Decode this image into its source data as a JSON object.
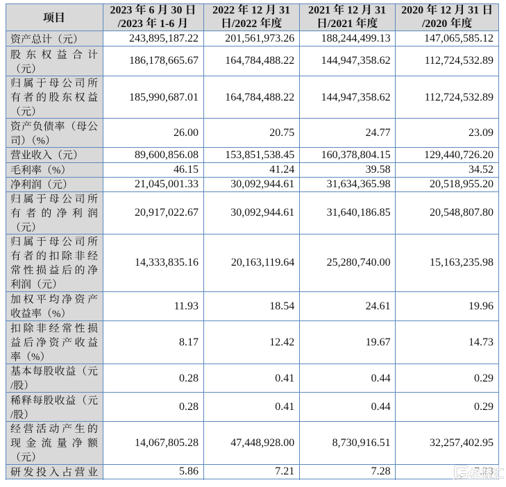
{
  "table": {
    "item_header": "项目",
    "period_headers": [
      {
        "lines": [
          "2023 年 6 月 30 日",
          "/2023 年 1-6 月"
        ],
        "text": "2023 年 6 月 30 日/2023 年 1-6 月"
      },
      {
        "lines": [
          "2022 年 12 月 31",
          "日/2022 年度"
        ],
        "text": "2022 年 12 月 31 日/2022 年度"
      },
      {
        "lines": [
          "2021 年 12 月 31",
          "日/2021 年度"
        ],
        "text": "2021 年 12 月 31 日/2021 年度"
      },
      {
        "lines": [
          "2020 年 12 月 31 日",
          "/2020 年度"
        ],
        "text": "2020 年 12 月 31 日/2020 年度"
      }
    ],
    "rows": [
      {
        "label": "资产总计（元）",
        "label_lines": [
          "资产总计（元）"
        ],
        "values": [
          "243,895,187.22",
          "201,561,973.26",
          "188,244,499.13",
          "147,065,585.12"
        ]
      },
      {
        "label": "股东权益合计（元）",
        "label_lines": [
          "股东权益合计",
          "（元）"
        ],
        "values": [
          "186,178,665.67",
          "164,784,488.22",
          "144,947,358.62",
          "112,724,532.89"
        ]
      },
      {
        "label": "归属于母公司所有者的股东权益（元）",
        "label_lines": [
          "归属于母公司所",
          "有者的股东权益",
          "（元）"
        ],
        "values": [
          "185,990,687.01",
          "164,784,488.22",
          "144,947,358.62",
          "112,724,532.89"
        ]
      },
      {
        "label": "资产负债率（母公司）（%）",
        "label_lines": [
          "资产负债率（母公",
          "司）（%）"
        ],
        "values": [
          "26.00",
          "20.75",
          "24.77",
          "23.09"
        ]
      },
      {
        "label": "营业收入（元）",
        "label_lines": [
          "营业收入（元）"
        ],
        "values": [
          "89,600,856.08",
          "153,851,538.45",
          "160,378,804.15",
          "129,440,726.20"
        ]
      },
      {
        "label": "毛利率（%）",
        "label_lines": [
          "毛利率（%）"
        ],
        "values": [
          "46.15",
          "41.24",
          "39.58",
          "34.52"
        ]
      },
      {
        "label": "净利润（元）",
        "label_lines": [
          "净利润（元）"
        ],
        "values": [
          "21,045,001.33",
          "30,092,944.61",
          "31,634,365.98",
          "20,518,955.20"
        ]
      },
      {
        "label": "归属于母公司所有者的净利润（元）",
        "label_lines": [
          "归属于母公司所",
          "有者的净利润",
          "（元）"
        ],
        "values": [
          "20,917,022.67",
          "30,092,944.61",
          "31,640,186.85",
          "20,548,807.80"
        ]
      },
      {
        "label": "归属于母公司所有者的扣除非经常性损益后的净利润（元）",
        "label_lines": [
          "归属于母公司所",
          "有者的扣除非经",
          "常性损益后的净",
          "利润（元）"
        ],
        "values": [
          "14,333,835.16",
          "20,163,119.64",
          "25,280,740.00",
          "15,163,235.98"
        ]
      },
      {
        "label": "加权平均净资产收益率（%）",
        "label_lines": [
          "加权平均净资产",
          "收益率（%）"
        ],
        "values": [
          "11.93",
          "18.54",
          "24.61",
          "19.96"
        ]
      },
      {
        "label": "扣除非经常性损益后净资产收益率（%）",
        "label_lines": [
          "扣除非经常性损",
          "益后净资产收益",
          "率（%）"
        ],
        "values": [
          "8.17",
          "12.42",
          "19.67",
          "14.73"
        ]
      },
      {
        "label": "基本每股收益（元/股）",
        "label_lines": [
          "基本每股收益（元",
          "/股）"
        ],
        "values": [
          "0.28",
          "0.41",
          "0.44",
          "0.29"
        ]
      },
      {
        "label": "稀释每股收益（元/股）",
        "label_lines": [
          "稀释每股收益（元",
          "/股）"
        ],
        "values": [
          "0.28",
          "0.41",
          "0.44",
          "0.29"
        ]
      },
      {
        "label": "经营活动产生的现金流量净额（元）",
        "label_lines": [
          "经营活动产生的",
          "现金流量净额",
          "（元）"
        ],
        "values": [
          "14,067,805.28",
          "47,448,928.00",
          "8,730,916.51",
          "32,257,402.95"
        ]
      },
      {
        "label": "研发投入占营业",
        "label_lines": [
          "研发投入占营业"
        ],
        "clipped": true,
        "values": [
          "5.86",
          "7.21",
          "7.28",
          "7.23"
        ]
      }
    ]
  },
  "watermark": {
    "text": "格隆汇",
    "logo": "gelonghui-logo"
  },
  "colors": {
    "border": "#5b87bd",
    "shaded_bg": "#d9d9d9",
    "text": "#121212",
    "page_bg": "#ffffff",
    "watermark_fill": "#ffffff",
    "watermark_outline": "#9b9b9b"
  }
}
